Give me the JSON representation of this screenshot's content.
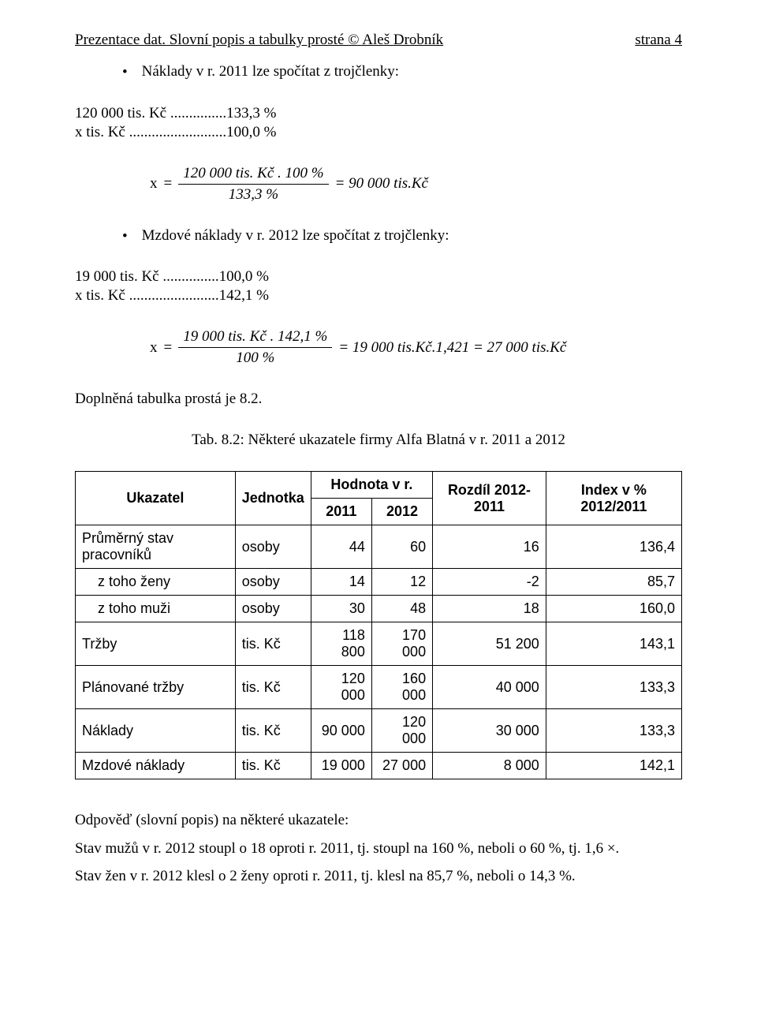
{
  "header": {
    "left": "Prezentace dat. Slovní popis a tabulky prosté © Aleš Drobník",
    "right": "strana 4"
  },
  "bullet1": {
    "text": "Náklady v r. 2011 lze spočítat z trojčlenky:"
  },
  "rel1": {
    "line1": "120 000 tis. Kč ...............133,3 %",
    "line2": "x tis. Kč ..........................100,0 %"
  },
  "formula1": {
    "lhs": "x",
    "eq": "=",
    "num": "120 000 tis. Kč . 100 %",
    "den": "133,3 %",
    "rhs": "= 90 000 tis.Kč"
  },
  "bullet2": {
    "text": "Mzdové náklady v r. 2012 lze spočítat z trojčlenky:"
  },
  "rel2": {
    "line1": "19 000 tis. Kč ...............100,0 %",
    "line2": "x tis. Kč ........................142,1 %"
  },
  "formula2": {
    "lhs": "x",
    "eq": "=",
    "num": "19 000 tis. Kč . 142,1 %",
    "den": "100 %",
    "rhs": "= 19 000 tis.Kč.1,421 = 27 000 tis.Kč"
  },
  "sentence": "Doplněná tabulka prostá je 8.2.",
  "caption": "Tab. 8.2: Některé ukazatele firmy Alfa Blatná v r. 2011 a 2012",
  "table": {
    "head": {
      "c1": "Ukazatel",
      "c2": "Jednotka",
      "c3": "Hodnota v r.",
      "c3a": "2011",
      "c3b": "2012",
      "c4": "Rozdíl 2012-2011",
      "c5": "Index v % 2012/2011"
    },
    "rows": [
      {
        "label": "Průměrný stav pracovníků",
        "unit": "osoby",
        "y2011": "44",
        "y2012": "60",
        "diff": "16",
        "idx": "136,4",
        "indent": false
      },
      {
        "label": "z toho ženy",
        "unit": "osoby",
        "y2011": "14",
        "y2012": "12",
        "diff": "-2",
        "idx": "85,7",
        "indent": true
      },
      {
        "label": "z toho muži",
        "unit": "osoby",
        "y2011": "30",
        "y2012": "48",
        "diff": "18",
        "idx": "160,0",
        "indent": true
      },
      {
        "label": "Tržby",
        "unit": "tis. Kč",
        "y2011": "118 800",
        "y2012": "170 000",
        "diff": "51 200",
        "idx": "143,1",
        "indent": false
      },
      {
        "label": "Plánované tržby",
        "unit": "tis. Kč",
        "y2011": "120 000",
        "y2012": "160 000",
        "diff": "40 000",
        "idx": "133,3",
        "indent": false
      },
      {
        "label": "Náklady",
        "unit": "tis. Kč",
        "y2011": "90 000",
        "y2012": "120 000",
        "diff": "30 000",
        "idx": "133,3",
        "indent": false
      },
      {
        "label": "Mzdové náklady",
        "unit": "tis. Kč",
        "y2011": "19 000",
        "y2012": "27 000",
        "diff": "8 000",
        "idx": "142,1",
        "indent": false
      }
    ]
  },
  "after": {
    "l1": "Odpověď (slovní popis) na některé ukazatele:",
    "l2": "Stav mužů v r. 2012 stoupl o 18 oproti r. 2011, tj. stoupl na 160 %, neboli o 60 %, tj. 1,6 ×.",
    "l3": "Stav žen v r. 2012 klesl o 2 ženy oproti r. 2011, tj. klesl na 85,7 %, neboli o 14,3 %."
  }
}
